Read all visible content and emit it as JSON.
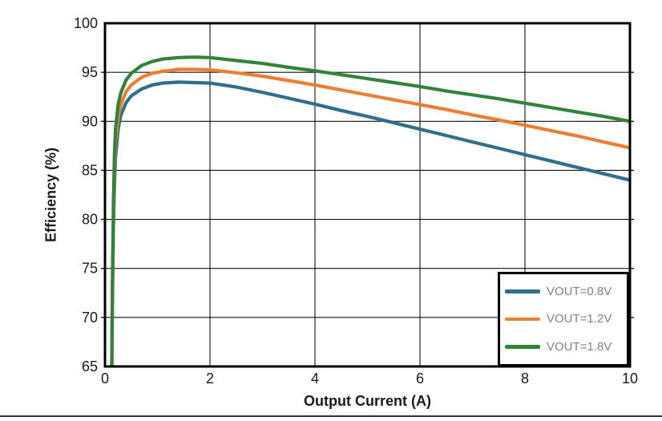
{
  "page": {
    "background": "#ffffff",
    "divider_color": "#303030"
  },
  "chart_data": {
    "type": "line",
    "title": "",
    "xlabel": "Output Current (A)",
    "ylabel": "Efficiency (%)",
    "xlim": [
      0,
      10
    ],
    "ylim": [
      65,
      100
    ],
    "xticks": [
      0,
      2,
      4,
      6,
      8,
      10
    ],
    "yticks": [
      65,
      70,
      75,
      80,
      85,
      90,
      95,
      100
    ],
    "grid": true,
    "grid_color": "#111111",
    "frame_color": "#000000",
    "tick_label_color": "#1a1a1a",
    "legend": {
      "position": "lower-right",
      "border_color": "#000000",
      "background": "#ffffff",
      "text_color": "#808080"
    },
    "series": [
      {
        "name": "VOUT=0.8V",
        "color": "#2E6F8E",
        "points": [
          [
            0.13,
            65
          ],
          [
            0.14,
            71
          ],
          [
            0.16,
            79
          ],
          [
            0.18,
            83.5
          ],
          [
            0.2,
            86.3
          ],
          [
            0.25,
            89.2
          ],
          [
            0.3,
            90.6
          ],
          [
            0.4,
            91.9
          ],
          [
            0.5,
            92.6
          ],
          [
            0.7,
            93.3
          ],
          [
            0.9,
            93.7
          ],
          [
            1.1,
            93.9
          ],
          [
            1.4,
            94.0
          ],
          [
            1.7,
            93.95
          ],
          [
            2,
            93.9
          ],
          [
            2.5,
            93.5
          ],
          [
            3,
            92.95
          ],
          [
            3.5,
            92.35
          ],
          [
            4,
            91.75
          ],
          [
            4.5,
            91.1
          ],
          [
            5,
            90.5
          ],
          [
            5.5,
            89.85
          ],
          [
            6,
            89.2
          ],
          [
            6.5,
            88.55
          ],
          [
            7,
            87.9
          ],
          [
            7.5,
            87.25
          ],
          [
            8,
            86.6
          ],
          [
            8.5,
            85.95
          ],
          [
            9,
            85.3
          ],
          [
            9.5,
            84.65
          ],
          [
            10,
            84.0
          ]
        ]
      },
      {
        "name": "VOUT=1.2V",
        "color": "#ED7D31",
        "points": [
          [
            0.13,
            65
          ],
          [
            0.14,
            72
          ],
          [
            0.16,
            80
          ],
          [
            0.18,
            85
          ],
          [
            0.2,
            87.8
          ],
          [
            0.25,
            90.4
          ],
          [
            0.3,
            91.7
          ],
          [
            0.4,
            93.0
          ],
          [
            0.5,
            93.7
          ],
          [
            0.7,
            94.5
          ],
          [
            0.9,
            94.9
          ],
          [
            1.1,
            95.1
          ],
          [
            1.4,
            95.3
          ],
          [
            1.7,
            95.3
          ],
          [
            2,
            95.25
          ],
          [
            2.5,
            94.95
          ],
          [
            3,
            94.6
          ],
          [
            3.5,
            94.15
          ],
          [
            4,
            93.7
          ],
          [
            4.5,
            93.2
          ],
          [
            5,
            92.7
          ],
          [
            5.5,
            92.2
          ],
          [
            6,
            91.7
          ],
          [
            6.5,
            91.2
          ],
          [
            7,
            90.65
          ],
          [
            7.5,
            90.15
          ],
          [
            8,
            89.6
          ],
          [
            8.5,
            89.05
          ],
          [
            9,
            88.5
          ],
          [
            9.5,
            87.9
          ],
          [
            10,
            87.3
          ]
        ]
      },
      {
        "name": "VOUT=1.8V",
        "color": "#318339",
        "points": [
          [
            0.13,
            65
          ],
          [
            0.14,
            73
          ],
          [
            0.16,
            81.5
          ],
          [
            0.18,
            86.5
          ],
          [
            0.2,
            89.2
          ],
          [
            0.25,
            91.7
          ],
          [
            0.3,
            92.9
          ],
          [
            0.4,
            94.2
          ],
          [
            0.5,
            94.9
          ],
          [
            0.7,
            95.7
          ],
          [
            0.9,
            96.1
          ],
          [
            1.1,
            96.35
          ],
          [
            1.4,
            96.5
          ],
          [
            1.7,
            96.55
          ],
          [
            2,
            96.5
          ],
          [
            2.5,
            96.2
          ],
          [
            3,
            95.9
          ],
          [
            3.5,
            95.5
          ],
          [
            4,
            95.15
          ],
          [
            4.5,
            94.75
          ],
          [
            5,
            94.35
          ],
          [
            5.5,
            93.95
          ],
          [
            6,
            93.55
          ],
          [
            6.5,
            93.1
          ],
          [
            7,
            92.7
          ],
          [
            7.5,
            92.3
          ],
          [
            8,
            91.85
          ],
          [
            8.5,
            91.4
          ],
          [
            9,
            90.95
          ],
          [
            9.5,
            90.5
          ],
          [
            10,
            90.0
          ]
        ]
      }
    ]
  }
}
